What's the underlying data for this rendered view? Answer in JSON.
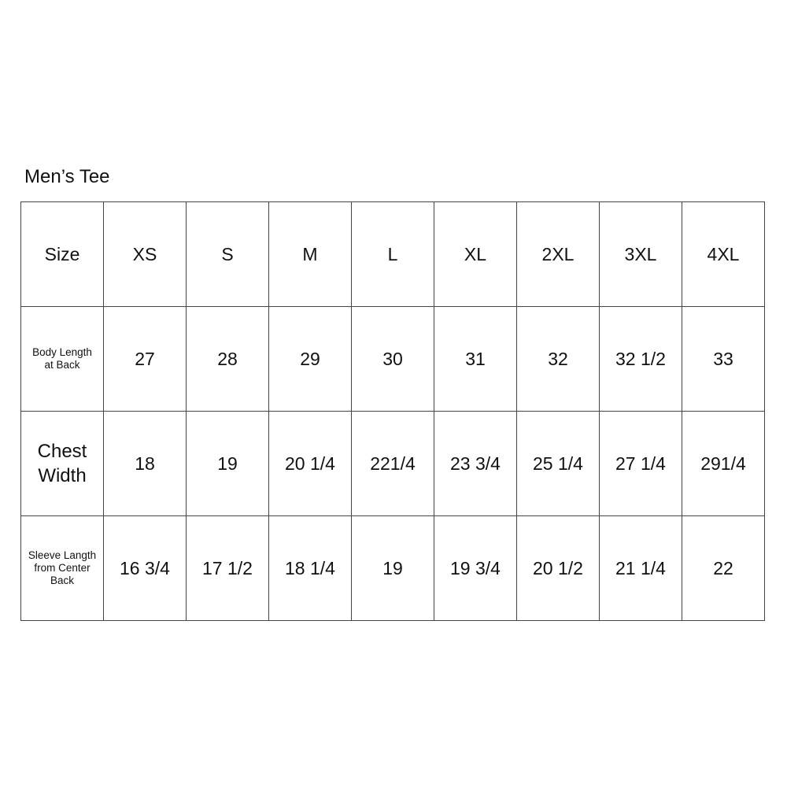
{
  "title": "Men’s Tee",
  "table": {
    "header": [
      "Size",
      "XS",
      "S",
      "M",
      "L",
      "XL",
      "2XL",
      "3XL",
      "4XL"
    ],
    "rows": [
      {
        "label_lines": [
          "Body Length",
          "at Back"
        ],
        "values": [
          "27",
          "28",
          "29",
          "30",
          "31",
          "32",
          "32 1/2",
          "33"
        ]
      },
      {
        "label_lines": [
          "Chest",
          "Width"
        ],
        "values": [
          "18",
          "19",
          "20 1/4",
          "221/4",
          "23 3/4",
          "25 1/4",
          "27 1/4",
          "291/4"
        ]
      },
      {
        "label_lines": [
          "Sleeve Langth",
          "from Center",
          "Back"
        ],
        "values": [
          "16 3/4",
          "17 1/2",
          "18 1/4",
          "19",
          "19 3/4",
          "20 1/2",
          "21 1/4",
          "22"
        ]
      }
    ]
  }
}
